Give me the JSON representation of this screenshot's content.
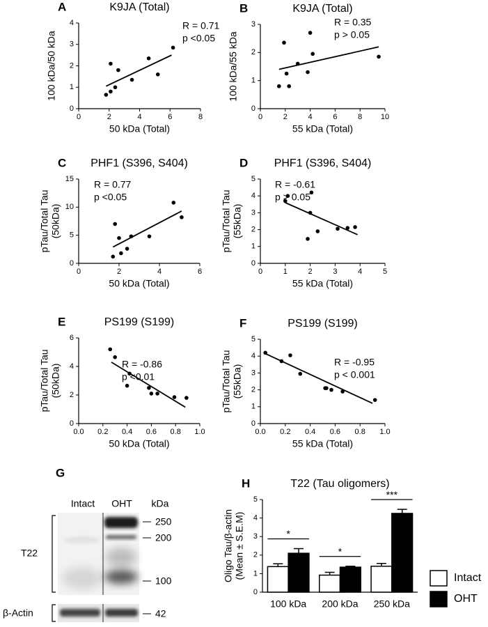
{
  "chart_data": [
    {
      "type": "scatter",
      "panel": "A",
      "title": "K9JA (Total)",
      "xlabel": "50 kDa (Total)",
      "ylabel": [
        "100 kDa/50 kDa"
      ],
      "annotations": [
        "R = 0.71",
        "p <0.05"
      ],
      "x": [
        1.8,
        2.1,
        2.1,
        2.4,
        2.6,
        3.5,
        4.6,
        5.2,
        6.2
      ],
      "y": [
        0.65,
        0.8,
        2.1,
        1.0,
        1.8,
        1.35,
        2.35,
        1.6,
        2.85
      ],
      "fit": {
        "x": [
          1.8,
          6.1
        ],
        "y": [
          1.05,
          2.5
        ]
      },
      "xlim": [
        0,
        8
      ],
      "xticks": [
        0,
        2,
        4,
        6,
        8
      ],
      "ylim": [
        0,
        4
      ],
      "yticks": [
        0,
        1,
        2,
        3,
        4
      ]
    },
    {
      "type": "scatter",
      "panel": "B",
      "title": "K9JA (Total)",
      "xlabel": "55 kDa (Total)",
      "ylabel": [
        "100 kDa/55 kDa"
      ],
      "annotations": [
        "R = 0.35",
        "p > 0.05"
      ],
      "x": [
        1.5,
        1.9,
        2.1,
        2.3,
        3.0,
        3.8,
        4.0,
        4.2,
        9.5
      ],
      "y": [
        0.8,
        2.35,
        1.25,
        0.8,
        1.6,
        1.3,
        2.7,
        1.95,
        1.85
      ],
      "fit": {
        "x": [
          1.5,
          9.5
        ],
        "y": [
          1.4,
          2.2
        ]
      },
      "xlim": [
        0,
        10
      ],
      "xticks": [
        0,
        2,
        4,
        6,
        8,
        10
      ],
      "ylim": [
        0,
        3
      ],
      "yticks": [
        0,
        1,
        2,
        3
      ]
    },
    {
      "type": "scatter",
      "panel": "C",
      "title": "PHF1 (S396, S404)",
      "xlabel": "50 kDa (Total)",
      "ylabel": [
        "pTau/Total Tau",
        "(50kDa)"
      ],
      "annotations": [
        "R = 0.77",
        "p <0.05"
      ],
      "x": [
        1.7,
        1.8,
        2.0,
        2.1,
        2.4,
        2.6,
        3.5,
        4.7,
        5.1
      ],
      "y": [
        1.2,
        7.0,
        4.5,
        1.8,
        2.6,
        4.8,
        4.8,
        10.8,
        8.2
      ],
      "fit": {
        "x": [
          1.7,
          5.1
        ],
        "y": [
          2.9,
          9.3
        ]
      },
      "xlim": [
        0,
        6
      ],
      "xticks": [
        0,
        2,
        4,
        6
      ],
      "ylim": [
        0,
        15
      ],
      "yticks": [
        0,
        5,
        10,
        15
      ]
    },
    {
      "type": "scatter",
      "panel": "D",
      "title": "PHF1 (S396, S404)",
      "xlabel": "55 kDa (Total)",
      "ylabel": [
        "pTau/Total Tau",
        "(55kDa)"
      ],
      "annotations": [
        "R = -0.61",
        "p > 0.05"
      ],
      "x": [
        1.0,
        1.1,
        1.9,
        2.0,
        2.05,
        2.3,
        3.1,
        3.5,
        3.8
      ],
      "y": [
        3.7,
        4.0,
        1.45,
        3.0,
        4.2,
        1.9,
        2.05,
        2.1,
        2.15
      ],
      "fit": {
        "x": [
          1.0,
          3.9
        ],
        "y": [
          3.6,
          1.7
        ]
      },
      "xlim": [
        0,
        5
      ],
      "xticks": [
        0,
        1,
        2,
        3,
        4,
        5
      ],
      "ylim": [
        0,
        5
      ],
      "yticks": [
        0,
        1,
        2,
        3,
        4,
        5
      ]
    },
    {
      "type": "scatter",
      "panel": "E",
      "title": "PS199 (S199)",
      "xlabel": "50 kDa (Total)",
      "ylabel": [
        "pTau/Total Tau",
        "(50kDa)"
      ],
      "annotations": [
        "R = -0.86",
        "p <0.01"
      ],
      "x": [
        0.26,
        0.3,
        0.4,
        0.42,
        0.58,
        0.6,
        0.65,
        0.79,
        0.89
      ],
      "y": [
        5.2,
        4.65,
        2.65,
        3.5,
        2.5,
        2.1,
        2.1,
        1.85,
        1.8
      ],
      "fit": {
        "x": [
          0.27,
          0.88
        ],
        "y": [
          4.3,
          1.15
        ]
      },
      "xlim": [
        0,
        1
      ],
      "xticks": [
        {
          "value": 0,
          "label": "0.0"
        },
        0.2,
        0.4,
        0.6,
        0.8,
        {
          "value": 1,
          "label": "1.0"
        }
      ],
      "ylim": [
        0,
        6
      ],
      "yticks": [
        0,
        2,
        4,
        6
      ]
    },
    {
      "type": "scatter",
      "panel": "F",
      "title": "PS199 (S199)",
      "xlabel": "55 kDa (Total)",
      "ylabel": [
        "pTau/Total Tau",
        "(55kDa)"
      ],
      "annotations": [
        "R = -0.95",
        "p < 0.001"
      ],
      "x": [
        0.04,
        0.17,
        0.24,
        0.32,
        0.52,
        0.53,
        0.57,
        0.66,
        0.92
      ],
      "y": [
        4.2,
        3.7,
        4.05,
        2.95,
        2.1,
        2.1,
        2.0,
        1.9,
        1.4
      ],
      "fit": {
        "x": [
          0.04,
          0.9
        ],
        "y": [
          4.15,
          1.2
        ]
      },
      "xlim": [
        0,
        1
      ],
      "xticks": [
        {
          "value": 0,
          "label": "0.0"
        },
        0.2,
        0.4,
        0.6,
        0.8,
        {
          "value": 1,
          "label": "1.0"
        }
      ],
      "ylim": [
        0,
        5
      ],
      "yticks": [
        0,
        1,
        2,
        3,
        4,
        5
      ]
    },
    {
      "type": "bar",
      "panel": "H",
      "title": "T22 (Tau oligomers)",
      "ylabel": [
        "Oligo Tau/β-actin",
        "(Mean ± S.E.M)"
      ],
      "categories": [
        "100 kDa",
        "200 kDa",
        "250 kDa"
      ],
      "series": [
        {
          "name": "Intact",
          "color": "#ffffff",
          "values": [
            1.38,
            0.92,
            1.4
          ],
          "errors": [
            0.15,
            0.15,
            0.15
          ]
        },
        {
          "name": "OHT",
          "color": "#000000",
          "values": [
            2.1,
            1.35,
            4.25
          ],
          "errors": [
            0.25,
            0.05,
            0.22
          ]
        }
      ],
      "significance": [
        "*",
        "*",
        "***"
      ],
      "ylim": [
        0,
        5
      ],
      "yticks": [
        0,
        1,
        2,
        3,
        4,
        5
      ]
    }
  ],
  "blot": {
    "panel": "G",
    "lanes": [
      "Intact",
      "OHT"
    ],
    "unit": "kDa",
    "markers": [
      250,
      200,
      100,
      42
    ],
    "antibody": "T22",
    "loading_control": "β-Actin"
  }
}
